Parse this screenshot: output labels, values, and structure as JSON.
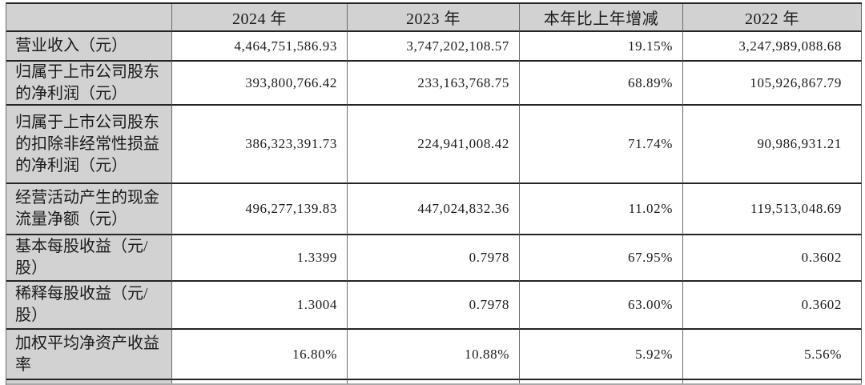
{
  "table": {
    "title_semantic": "key-financial-indicators-table",
    "headers": [
      "",
      "2024 年",
      "2023 年",
      "本年比上年增减",
      "2022 年"
    ],
    "rows": [
      {
        "label": "营业收入（元）",
        "values": [
          "4,464,751,586.93",
          "3,747,202,108.57",
          "19.15%",
          "3,247,989,088.68"
        ]
      },
      {
        "label": "归属于上市公司股东的净利润（元）",
        "values": [
          "393,800,766.42",
          "233,163,768.75",
          "68.89%",
          "105,926,867.79"
        ]
      },
      {
        "label": "归属于上市公司股东的扣除非经常性损益的净利润（元）",
        "values": [
          "386,323,391.73",
          "224,941,008.42",
          "71.74%",
          "90,986,931.21"
        ]
      },
      {
        "label": "经营活动产生的现金流量净额（元）",
        "values": [
          "496,277,139.83",
          "447,024,832.36",
          "11.02%",
          "119,513,048.69"
        ]
      },
      {
        "label": "基本每股收益（元/股）",
        "values": [
          "1.3399",
          "0.7978",
          "67.95%",
          "0.3602"
        ]
      },
      {
        "label": "稀释每股收益（元/股）",
        "values": [
          "1.3004",
          "0.7978",
          "63.00%",
          "0.3602"
        ]
      },
      {
        "label": "加权平均净资产收益率",
        "values": [
          "16.80%",
          "10.88%",
          "5.92%",
          "5.56%"
        ]
      }
    ],
    "colors": {
      "header_bg": "#d2d2d2",
      "label_bg": "#d2d2d2",
      "row_border": "#242424",
      "col_border": "#6a6a6a",
      "text": "#1b1b1b",
      "page_bg": "#ffffff"
    }
  }
}
